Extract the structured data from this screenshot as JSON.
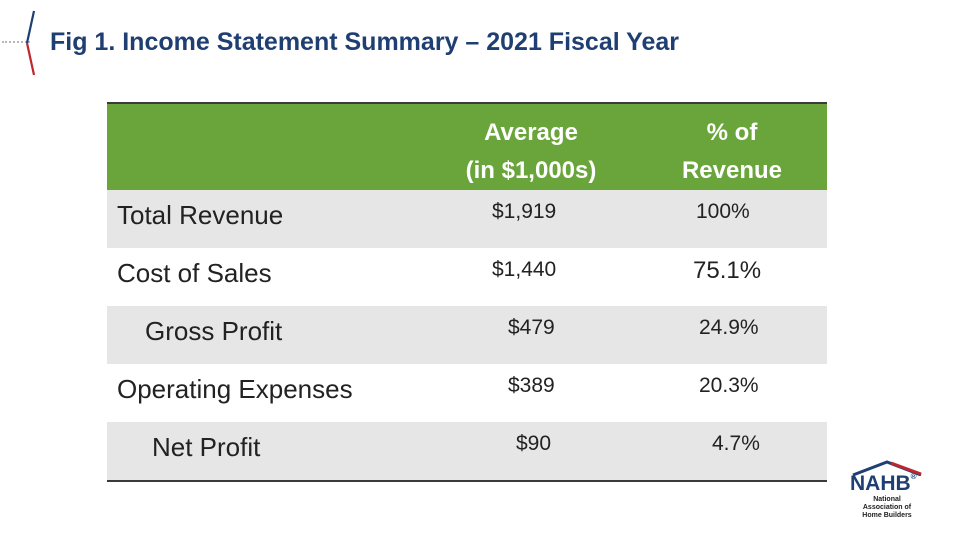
{
  "slide": {
    "title": "Fig 1. Income Statement Summary – 2021 Fiscal Year"
  },
  "table": {
    "headers": {
      "average": "Average\n(in $1,000s)",
      "percent": "% of\nRevenue"
    },
    "rows": [
      {
        "label": "Total Revenue",
        "average": "$1,919",
        "percent": "100%"
      },
      {
        "label": "Cost of Sales",
        "average": "$1,440",
        "percent": "75.1%"
      },
      {
        "label": "Gross Profit",
        "average": "$479",
        "percent": "24.9%"
      },
      {
        "label": "Operating Expenses",
        "average": "$389",
        "percent": "20.3%"
      },
      {
        "label": "Net Profit",
        "average": "$90",
        "percent": "4.7%"
      }
    ]
  },
  "logo": {
    "name": "NAHB",
    "subtitle": "National Association of Home Builders",
    "registered": "®",
    "colors": {
      "roof_red": "#c0272d",
      "roof_blue": "#1f3f73",
      "text": "#1f3f73"
    }
  },
  "colors": {
    "header_green": "#6aa53b",
    "title_blue": "#1f3f73",
    "row_shade": "#e6e6e6"
  }
}
